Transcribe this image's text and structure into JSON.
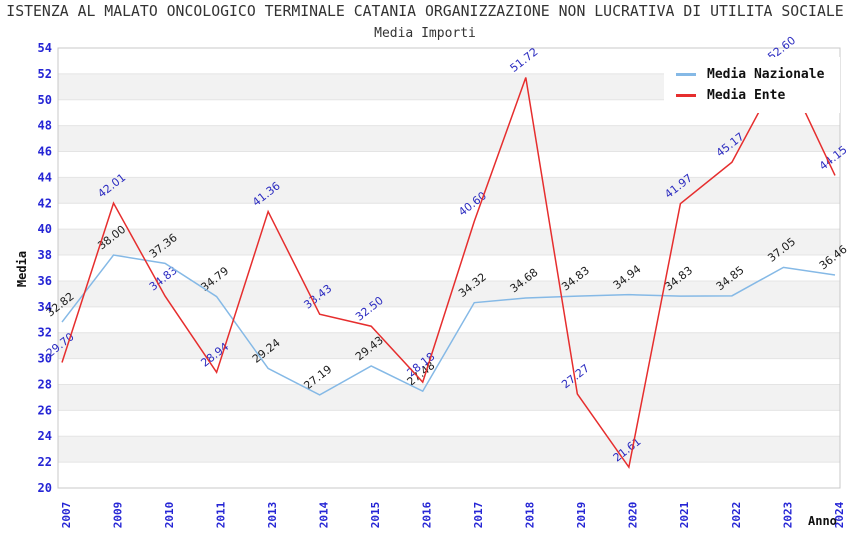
{
  "header": {
    "title": "ISTENZA AL MALATO ONCOLOGICO TERMINALE CATANIA ORGANIZZAZIONE NON LUCRATIVA DI UTILITA SOCIALE",
    "subtitle": "Media Importi"
  },
  "legend": {
    "items": [
      {
        "label": "Media Nazionale",
        "color": "#85b9e6"
      },
      {
        "label": "Media Ente",
        "color": "#e62e2e"
      }
    ],
    "position": "top-right"
  },
  "colors": {
    "axis_tick_label": "#2525d5",
    "nazionale_line": "#85b9e6",
    "ente_line": "#e62e2e",
    "nazionale_data_label": "#1c1c1c",
    "ente_data_label": "#2b2bc0",
    "band_gray": "#f2f2f2",
    "grid_line": "#e4e4e4",
    "plot_border": "#c8c8c8",
    "title_text": "#333333"
  },
  "chart_data": {
    "type": "line",
    "title": "Media Importi",
    "xlabel": "Anno",
    "ylabel": "Media",
    "ylim": [
      20,
      54
    ],
    "y_tick_step": 2,
    "grid": true,
    "alternating_bands": true,
    "legend_position": "top-right",
    "categories": [
      "2007",
      "2009",
      "2010",
      "2011",
      "2013",
      "2014",
      "2015",
      "2016",
      "2017",
      "2018",
      "2019",
      "2020",
      "2021",
      "2022",
      "2023",
      "2024"
    ],
    "series": [
      {
        "name": "Media Nazionale",
        "color": "#85b9e6",
        "label_color": "#1c1c1c",
        "values": [
          32.82,
          38.0,
          37.36,
          34.79,
          29.24,
          27.19,
          29.43,
          27.48,
          34.32,
          34.68,
          34.83,
          34.94,
          34.83,
          34.85,
          37.05,
          36.46
        ]
      },
      {
        "name": "Media Ente",
        "color": "#e62e2e",
        "label_color": "#2b2bc0",
        "values": [
          29.7,
          42.01,
          34.83,
          28.94,
          41.36,
          33.43,
          32.5,
          28.18,
          40.6,
          51.72,
          27.27,
          21.61,
          41.97,
          45.17,
          52.6,
          44.15
        ]
      }
    ]
  }
}
